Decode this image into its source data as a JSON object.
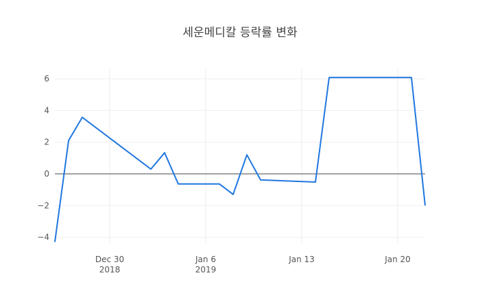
{
  "chart_data": {
    "type": "line",
    "title": "세운메디칼 등락률 변화",
    "xlabel": "",
    "ylabel": "",
    "x": [
      "2018-12-26",
      "2018-12-27",
      "2018-12-28",
      "2019-01-02",
      "2019-01-03",
      "2019-01-04",
      "2019-01-07",
      "2019-01-08",
      "2019-01-09",
      "2019-01-10",
      "2019-01-14",
      "2019-01-15",
      "2019-01-21",
      "2019-01-22"
    ],
    "series": [
      {
        "name": "등락률",
        "color": "#1f77e0",
        "values": [
          -4.3,
          2.1,
          3.57,
          0.3,
          1.33,
          -0.64,
          -0.64,
          -1.3,
          1.2,
          -0.38,
          -0.52,
          6.08,
          6.08,
          -2.0
        ]
      }
    ],
    "ylim": [
      -4.3,
      6.6
    ],
    "yticks": [
      -4,
      -2,
      0,
      2,
      4,
      6
    ],
    "ytick_labels": [
      "−4",
      "−2",
      "0",
      "2",
      "4",
      "6"
    ],
    "xticks": [
      {
        "date": "2018-12-30",
        "label": "Dec 30",
        "sublabel": "2018"
      },
      {
        "date": "2019-01-06",
        "label": "Jan 6",
        "sublabel": "2019"
      },
      {
        "date": "2019-01-13",
        "label": "Jan 13",
        "sublabel": ""
      },
      {
        "date": "2019-01-20",
        "label": "Jan 20",
        "sublabel": ""
      }
    ],
    "grid": true,
    "legend": "none"
  }
}
